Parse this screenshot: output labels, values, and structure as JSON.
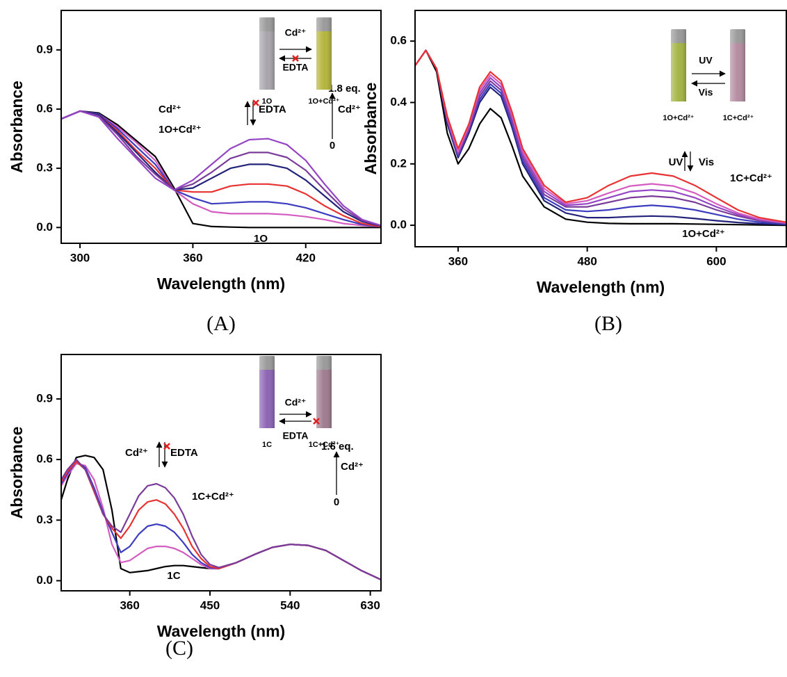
{
  "chart_data": [
    {
      "type": "line",
      "panel_label": "(A)",
      "xlabel": "Wavelength (nm)",
      "ylabel": "Absorbance",
      "xlim": [
        290,
        460
      ],
      "ylim": [
        -0.08,
        1.1
      ],
      "xticks": [
        300,
        360,
        420
      ],
      "yticks": [
        {
          "value": 0,
          "label": "0.0"
        },
        0.3,
        0.6,
        0.9
      ],
      "x": [
        290,
        300,
        310,
        320,
        330,
        340,
        350,
        360,
        370,
        380,
        390,
        400,
        410,
        420,
        430,
        440,
        450,
        460
      ],
      "series": [
        {
          "color": "#000000",
          "values": [
            0.55,
            0.59,
            0.58,
            0.52,
            0.44,
            0.36,
            0.2,
            0.02,
            0.005,
            0.002,
            0,
            0,
            0,
            0,
            0,
            0,
            0,
            0
          ]
        },
        {
          "color": "#d45cc0",
          "values": [
            0.55,
            0.59,
            0.575,
            0.51,
            0.43,
            0.34,
            0.19,
            0.12,
            0.08,
            0.07,
            0.07,
            0.07,
            0.065,
            0.055,
            0.04,
            0.02,
            0.01,
            0.005
          ]
        },
        {
          "color": "#3c3cc0",
          "values": [
            0.55,
            0.59,
            0.575,
            0.5,
            0.41,
            0.32,
            0.19,
            0.15,
            0.12,
            0.125,
            0.13,
            0.13,
            0.12,
            0.1,
            0.07,
            0.04,
            0.015,
            0.005
          ]
        },
        {
          "color": "#e83232",
          "values": [
            0.55,
            0.59,
            0.57,
            0.49,
            0.39,
            0.3,
            0.19,
            0.18,
            0.18,
            0.21,
            0.22,
            0.22,
            0.21,
            0.17,
            0.11,
            0.06,
            0.02,
            0.005
          ]
        },
        {
          "color": "#22227a",
          "values": [
            0.55,
            0.59,
            0.57,
            0.48,
            0.38,
            0.28,
            0.19,
            0.2,
            0.25,
            0.3,
            0.32,
            0.32,
            0.3,
            0.24,
            0.16,
            0.08,
            0.03,
            0.008
          ]
        },
        {
          "color": "#7a3c9a",
          "values": [
            0.55,
            0.59,
            0.565,
            0.47,
            0.36,
            0.27,
            0.19,
            0.22,
            0.28,
            0.35,
            0.38,
            0.38,
            0.355,
            0.29,
            0.19,
            0.095,
            0.035,
            0.01
          ]
        },
        {
          "color": "#9444c4",
          "values": [
            0.55,
            0.59,
            0.56,
            0.45,
            0.35,
            0.25,
            0.19,
            0.24,
            0.32,
            0.4,
            0.445,
            0.45,
            0.42,
            0.34,
            0.22,
            0.11,
            0.04,
            0.01
          ]
        }
      ],
      "annotations": [
        "1O+Cd²⁺",
        "1O",
        "Cd²⁺",
        "EDTA",
        "1.8 eq.",
        "Cd²⁺",
        "0"
      ],
      "inset_labels": [
        "Cd²⁺",
        "EDTA",
        "1O",
        "1O+Cd²⁺"
      ]
    },
    {
      "type": "line",
      "panel_label": "(B)",
      "xlabel": "Wavelength (nm)",
      "ylabel": "Absorbance",
      "xlim": [
        320,
        665
      ],
      "ylim": [
        -0.07,
        0.7
      ],
      "xticks": [
        360,
        480,
        600
      ],
      "yticks": [
        {
          "value": 0,
          "label": "0.0"
        },
        0.2,
        0.4,
        0.6
      ],
      "x": [
        320,
        330,
        340,
        350,
        360,
        370,
        380,
        390,
        400,
        410,
        420,
        440,
        460,
        480,
        500,
        520,
        540,
        560,
        580,
        600,
        620,
        640,
        665
      ],
      "series": [
        {
          "color": "#000000",
          "values": [
            0.52,
            0.57,
            0.5,
            0.3,
            0.2,
            0.25,
            0.33,
            0.38,
            0.35,
            0.26,
            0.16,
            0.06,
            0.02,
            0.01,
            0.006,
            0.005,
            0.005,
            0.005,
            0.004,
            0.003,
            0.002,
            0.001,
            0
          ]
        },
        {
          "color": "#22227a",
          "values": [
            0.52,
            0.57,
            0.51,
            0.33,
            0.22,
            0.3,
            0.4,
            0.45,
            0.42,
            0.32,
            0.2,
            0.08,
            0.04,
            0.025,
            0.025,
            0.028,
            0.03,
            0.028,
            0.022,
            0.015,
            0.009,
            0.005,
            0.002
          ]
        },
        {
          "color": "#3c3cc0",
          "values": [
            0.52,
            0.57,
            0.51,
            0.34,
            0.225,
            0.31,
            0.41,
            0.46,
            0.43,
            0.33,
            0.21,
            0.09,
            0.05,
            0.045,
            0.05,
            0.06,
            0.065,
            0.06,
            0.05,
            0.035,
            0.02,
            0.01,
            0.004
          ]
        },
        {
          "color": "#7a3c9a",
          "values": [
            0.52,
            0.57,
            0.51,
            0.34,
            0.23,
            0.31,
            0.42,
            0.47,
            0.44,
            0.34,
            0.22,
            0.1,
            0.06,
            0.06,
            0.075,
            0.09,
            0.095,
            0.09,
            0.075,
            0.05,
            0.03,
            0.015,
            0.006
          ]
        },
        {
          "color": "#9444c4",
          "values": [
            0.52,
            0.57,
            0.51,
            0.345,
            0.235,
            0.32,
            0.43,
            0.48,
            0.45,
            0.35,
            0.23,
            0.11,
            0.065,
            0.07,
            0.09,
            0.11,
            0.115,
            0.11,
            0.09,
            0.06,
            0.035,
            0.018,
            0.007
          ]
        },
        {
          "color": "#d45cc0",
          "values": [
            0.52,
            0.57,
            0.51,
            0.35,
            0.24,
            0.325,
            0.44,
            0.49,
            0.46,
            0.36,
            0.24,
            0.12,
            0.07,
            0.08,
            0.105,
            0.128,
            0.135,
            0.128,
            0.105,
            0.07,
            0.04,
            0.02,
            0.008
          ]
        },
        {
          "color": "#e83232",
          "values": [
            0.52,
            0.57,
            0.51,
            0.355,
            0.25,
            0.33,
            0.45,
            0.5,
            0.47,
            0.37,
            0.25,
            0.13,
            0.075,
            0.09,
            0.13,
            0.16,
            0.17,
            0.16,
            0.13,
            0.09,
            0.05,
            0.025,
            0.01
          ]
        }
      ],
      "annotations": [
        "UV",
        "Vis",
        "1C+Cd²⁺",
        "1O+Cd²⁺"
      ],
      "inset_labels": [
        "UV",
        "Vis",
        "1O+Cd²⁺",
        "1C+Cd²⁺"
      ]
    },
    {
      "type": "line",
      "panel_label": "(C)",
      "xlabel": "Wavelength (nm)",
      "ylabel": "Absorbance",
      "xlim": [
        283,
        642
      ],
      "ylim": [
        -0.05,
        1.12
      ],
      "xticks": [
        360,
        450,
        540,
        630
      ],
      "yticks": [
        {
          "value": 0,
          "label": "0.0"
        },
        0.3,
        0.6,
        0.9
      ],
      "x": [
        283,
        290,
        300,
        310,
        320,
        330,
        340,
        350,
        360,
        370,
        380,
        390,
        400,
        410,
        420,
        430,
        440,
        450,
        460,
        480,
        500,
        520,
        540,
        560,
        580,
        600,
        620,
        642
      ],
      "series": [
        {
          "color": "#000000",
          "values": [
            0.4,
            0.5,
            0.61,
            0.62,
            0.61,
            0.55,
            0.35,
            0.06,
            0.04,
            0.045,
            0.05,
            0.06,
            0.07,
            0.075,
            0.075,
            0.07,
            0.065,
            0.06,
            0.06,
            0.09,
            0.13,
            0.165,
            0.18,
            0.175,
            0.15,
            0.1,
            0.05,
            0.005
          ]
        },
        {
          "color": "#d45cc0",
          "values": [
            0.47,
            0.52,
            0.58,
            0.57,
            0.5,
            0.36,
            0.18,
            0.09,
            0.1,
            0.13,
            0.16,
            0.17,
            0.17,
            0.16,
            0.14,
            0.11,
            0.08,
            0.06,
            0.06,
            0.09,
            0.13,
            0.165,
            0.18,
            0.175,
            0.15,
            0.1,
            0.05,
            0.005
          ]
        },
        {
          "color": "#3c3cc0",
          "values": [
            0.48,
            0.53,
            0.59,
            0.56,
            0.46,
            0.34,
            0.24,
            0.14,
            0.17,
            0.23,
            0.27,
            0.28,
            0.27,
            0.24,
            0.19,
            0.13,
            0.09,
            0.065,
            0.06,
            0.09,
            0.13,
            0.165,
            0.18,
            0.175,
            0.15,
            0.1,
            0.05,
            0.005
          ]
        },
        {
          "color": "#e83232",
          "values": [
            0.49,
            0.54,
            0.59,
            0.55,
            0.44,
            0.33,
            0.26,
            0.21,
            0.27,
            0.35,
            0.39,
            0.4,
            0.38,
            0.33,
            0.26,
            0.17,
            0.11,
            0.07,
            0.06,
            0.09,
            0.13,
            0.165,
            0.18,
            0.175,
            0.15,
            0.1,
            0.05,
            0.005
          ]
        },
        {
          "color": "#7a3c9a",
          "values": [
            0.5,
            0.55,
            0.6,
            0.55,
            0.45,
            0.33,
            0.27,
            0.24,
            0.33,
            0.42,
            0.47,
            0.48,
            0.46,
            0.41,
            0.33,
            0.22,
            0.13,
            0.08,
            0.065,
            0.09,
            0.13,
            0.165,
            0.18,
            0.175,
            0.15,
            0.1,
            0.05,
            0.005
          ]
        }
      ],
      "annotations": [
        "Cd²⁺",
        "EDTA",
        "1C+Cd²⁺",
        "1C",
        "1.6 eq.",
        "Cd²⁺",
        "0"
      ],
      "inset_labels": [
        "Cd²⁺",
        "EDTA",
        "1C",
        "1C+Cd²⁺"
      ]
    }
  ]
}
